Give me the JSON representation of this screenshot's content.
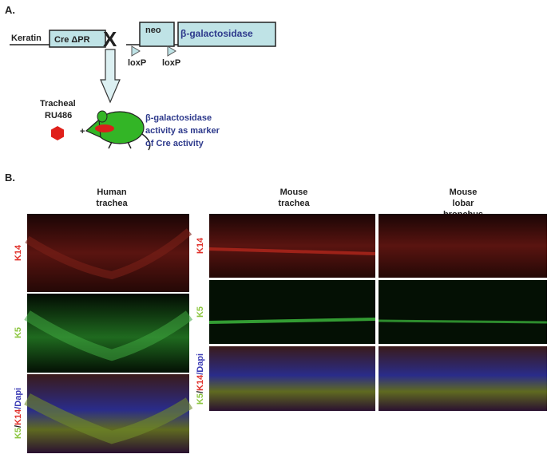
{
  "panel_a": {
    "label": "A.",
    "promoter": "Keratin",
    "cre": "Cre ΔPR",
    "cross": "X",
    "neo": "neo",
    "reporter": "β-galactosidase",
    "loxp": [
      "loxP",
      "loxP"
    ],
    "drug": [
      "Tracheal",
      "RU486"
    ],
    "plus": "+",
    "readout": [
      "β-galactosidase",
      "activity as marker",
      "of Cre activity"
    ]
  },
  "panel_b": {
    "label": "B.",
    "columns": [
      [
        "Human",
        "trachea"
      ],
      [
        "Mouse",
        "trachea"
      ],
      [
        "Mouse",
        "lobar",
        "bronchus"
      ]
    ],
    "row_labels_left": [
      "K14",
      "K5",
      [
        "K5",
        "/",
        "K14",
        "/Dapi"
      ]
    ],
    "row_labels_right": [
      "K14",
      "K5",
      [
        "K5",
        "/",
        "K14",
        "/Dapi"
      ]
    ]
  }
}
